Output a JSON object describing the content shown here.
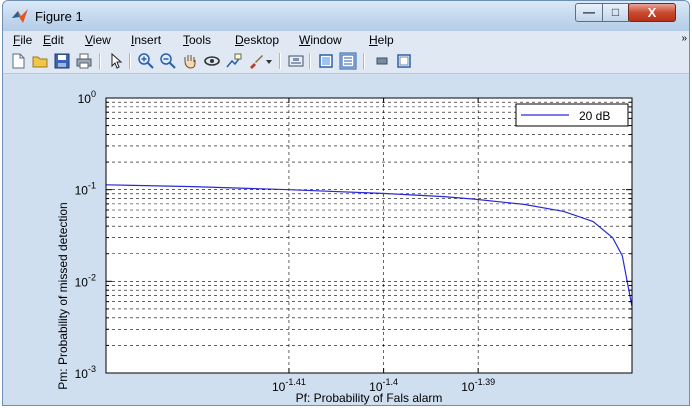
{
  "window": {
    "title": "Figure 1",
    "controls": {
      "minimize": "—",
      "maximize": "□",
      "close": "X"
    }
  },
  "menu": {
    "items": [
      {
        "label": "File",
        "underline": "F",
        "rest": "ile"
      },
      {
        "label": "Edit",
        "underline": "E",
        "rest": "dit"
      },
      {
        "label": "View",
        "underline": "V",
        "rest": "iew"
      },
      {
        "label": "Insert",
        "underline": "I",
        "rest": "nsert"
      },
      {
        "label": "Tools",
        "underline": "T",
        "rest": "ools"
      },
      {
        "label": "Desktop",
        "underline": "D",
        "rest": "esktop"
      },
      {
        "label": "Window",
        "underline": "W",
        "rest": "indow"
      },
      {
        "label": "Help",
        "underline": "H",
        "rest": "elp"
      }
    ],
    "overflow": "»"
  },
  "toolbar": {
    "buttons": [
      "new-figure-icon",
      "open-file-icon",
      "save-icon",
      "print-icon",
      "edit-plot-arrow-icon",
      "zoom-in-icon",
      "zoom-out-icon",
      "pan-hand-icon",
      "rotate-3d-icon",
      "data-cursor-icon",
      "brush-icon",
      "brush-dropdown-icon",
      "link-plot-icon",
      "insert-colorbar-icon",
      "insert-legend-icon",
      "hide-plot-tools-icon",
      "show-plot-tools-icon"
    ]
  },
  "colors": {
    "line": "#2a2ad6",
    "figure_bg": "#cfdff0",
    "axes_bg": "#ffffff"
  },
  "chart_data": {
    "type": "line",
    "xscale": "log",
    "yscale": "log",
    "xlabel": "Pf: Probability of Fals alarm",
    "ylabel": "Pm: Probability of missed detection",
    "xlim": [
      0.0372,
      0.0423
    ],
    "ylim": [
      0.001,
      1
    ],
    "xticks": [
      {
        "value": 0.0389,
        "base": "10",
        "exp": "-1.41"
      },
      {
        "value": 0.03981,
        "base": "10",
        "exp": "-1.4"
      },
      {
        "value": 0.04074,
        "base": "10",
        "exp": "-1.39"
      }
    ],
    "yticks": [
      {
        "value": 1,
        "base": "10",
        "exp": "0"
      },
      {
        "value": 0.1,
        "base": "10",
        "exp": "-1"
      },
      {
        "value": 0.01,
        "base": "10",
        "exp": "-2"
      },
      {
        "value": 0.001,
        "base": "10",
        "exp": "-3"
      }
    ],
    "grid": true,
    "legend": {
      "position": "top-right",
      "entries": [
        "20 dB"
      ]
    },
    "series": [
      {
        "name": "20 dB",
        "x": [
          0.0372,
          0.038,
          0.0389,
          0.0398,
          0.0404,
          0.0407,
          0.0412,
          0.0416,
          0.0419,
          0.0421,
          0.0422,
          0.0423
        ],
        "y": [
          0.113,
          0.108,
          0.1,
          0.091,
          0.084,
          0.079,
          0.069,
          0.058,
          0.045,
          0.03,
          0.019,
          0.0053
        ]
      }
    ]
  }
}
